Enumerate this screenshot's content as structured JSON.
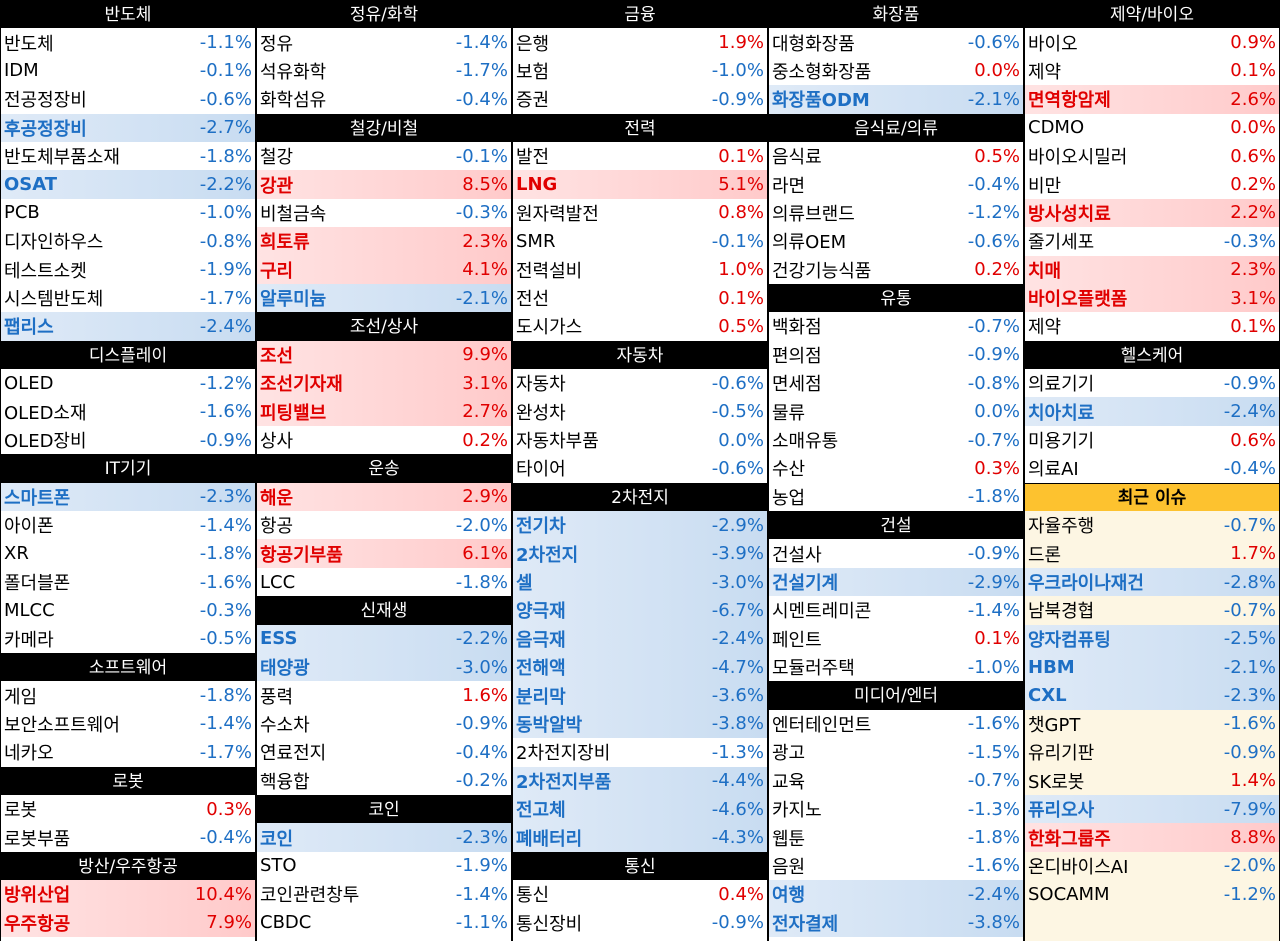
{
  "columns": [
    {
      "sections": [
        {
          "title": "반도체",
          "rows": [
            {
              "name": "반도체",
              "value": "-1.1%",
              "dir": "neg"
            },
            {
              "name": "IDM",
              "value": "-0.1%",
              "dir": "neg"
            },
            {
              "name": "전공정장비",
              "value": "-0.6%",
              "dir": "neg"
            },
            {
              "name": "후공정장비",
              "value": "-2.7%",
              "dir": "neg",
              "hl": "blue"
            },
            {
              "name": "반도체부품소재",
              "value": "-1.8%",
              "dir": "neg"
            },
            {
              "name": "OSAT",
              "value": "-2.2%",
              "dir": "neg",
              "hl": "blue"
            },
            {
              "name": "PCB",
              "value": "-1.0%",
              "dir": "neg"
            },
            {
              "name": "디자인하우스",
              "value": "-0.8%",
              "dir": "neg"
            },
            {
              "name": "테스트소켓",
              "value": "-1.9%",
              "dir": "neg"
            },
            {
              "name": "시스템반도체",
              "value": "-1.7%",
              "dir": "neg"
            },
            {
              "name": "팹리스",
              "value": "-2.4%",
              "dir": "neg",
              "hl": "blue"
            }
          ]
        },
        {
          "title": "디스플레이",
          "rows": [
            {
              "name": "OLED",
              "value": "-1.2%",
              "dir": "neg"
            },
            {
              "name": "OLED소재",
              "value": "-1.6%",
              "dir": "neg"
            },
            {
              "name": "OLED장비",
              "value": "-0.9%",
              "dir": "neg"
            }
          ]
        },
        {
          "title": "IT기기",
          "rows": [
            {
              "name": "스마트폰",
              "value": "-2.3%",
              "dir": "neg",
              "hl": "blue"
            },
            {
              "name": "아이폰",
              "value": "-1.4%",
              "dir": "neg"
            },
            {
              "name": "XR",
              "value": "-1.8%",
              "dir": "neg"
            },
            {
              "name": "폴더블폰",
              "value": "-1.6%",
              "dir": "neg"
            },
            {
              "name": "MLCC",
              "value": "-0.3%",
              "dir": "neg"
            },
            {
              "name": "카메라",
              "value": "-0.5%",
              "dir": "neg"
            }
          ]
        },
        {
          "title": "소프트웨어",
          "rows": [
            {
              "name": "게임",
              "value": "-1.8%",
              "dir": "neg"
            },
            {
              "name": "보안소프트웨어",
              "value": "-1.4%",
              "dir": "neg"
            },
            {
              "name": "네카오",
              "value": "-1.7%",
              "dir": "neg"
            }
          ]
        },
        {
          "title": "로봇",
          "rows": [
            {
              "name": "로봇",
              "value": "0.3%",
              "dir": "pos"
            },
            {
              "name": "로봇부품",
              "value": "-0.4%",
              "dir": "neg"
            }
          ]
        },
        {
          "title": "방산/우주항공",
          "rows": [
            {
              "name": "방위산업",
              "value": "10.4%",
              "dir": "pos",
              "hl": "red"
            },
            {
              "name": "우주항공",
              "value": "7.9%",
              "dir": "pos",
              "hl": "red"
            }
          ]
        }
      ]
    },
    {
      "sections": [
        {
          "title": "정유/화학",
          "rows": [
            {
              "name": "정유",
              "value": "-1.4%",
              "dir": "neg"
            },
            {
              "name": "석유화학",
              "value": "-1.7%",
              "dir": "neg"
            },
            {
              "name": "화학섬유",
              "value": "-0.4%",
              "dir": "neg"
            }
          ]
        },
        {
          "title": "철강/비철",
          "rows": [
            {
              "name": "철강",
              "value": "-0.1%",
              "dir": "neg"
            },
            {
              "name": "강관",
              "value": "8.5%",
              "dir": "pos",
              "hl": "red"
            },
            {
              "name": "비철금속",
              "value": "-0.3%",
              "dir": "neg"
            },
            {
              "name": "희토류",
              "value": "2.3%",
              "dir": "pos",
              "hl": "red"
            },
            {
              "name": "구리",
              "value": "4.1%",
              "dir": "pos",
              "hl": "red"
            },
            {
              "name": "알루미늄",
              "value": "-2.1%",
              "dir": "neg",
              "hl": "blue"
            }
          ]
        },
        {
          "title": "조선/상사",
          "rows": [
            {
              "name": "조선",
              "value": "9.9%",
              "dir": "pos",
              "hl": "red"
            },
            {
              "name": "조선기자재",
              "value": "3.1%",
              "dir": "pos",
              "hl": "red"
            },
            {
              "name": "피팅밸브",
              "value": "2.7%",
              "dir": "pos",
              "hl": "red"
            },
            {
              "name": "상사",
              "value": "0.2%",
              "dir": "pos"
            }
          ]
        },
        {
          "title": "운송",
          "rows": [
            {
              "name": "해운",
              "value": "2.9%",
              "dir": "pos",
              "hl": "red"
            },
            {
              "name": "항공",
              "value": "-2.0%",
              "dir": "neg"
            },
            {
              "name": "항공기부품",
              "value": "6.1%",
              "dir": "pos",
              "hl": "red"
            },
            {
              "name": "LCC",
              "value": "-1.8%",
              "dir": "neg"
            }
          ]
        },
        {
          "title": "신재생",
          "rows": [
            {
              "name": "ESS",
              "value": "-2.2%",
              "dir": "neg",
              "hl": "blue"
            },
            {
              "name": "태양광",
              "value": "-3.0%",
              "dir": "neg",
              "hl": "blue"
            },
            {
              "name": "풍력",
              "value": "1.6%",
              "dir": "pos"
            },
            {
              "name": "수소차",
              "value": "-0.9%",
              "dir": "neg"
            },
            {
              "name": "연료전지",
              "value": "-0.4%",
              "dir": "neg"
            },
            {
              "name": "핵융합",
              "value": "-0.2%",
              "dir": "neg"
            }
          ]
        },
        {
          "title": "코인",
          "rows": [
            {
              "name": "코인",
              "value": "-2.3%",
              "dir": "neg",
              "hl": "blue"
            },
            {
              "name": "STO",
              "value": "-1.9%",
              "dir": "neg"
            },
            {
              "name": "코인관련창투",
              "value": "-1.4%",
              "dir": "neg"
            },
            {
              "name": "CBDC",
              "value": "-1.1%",
              "dir": "neg"
            }
          ]
        }
      ]
    },
    {
      "sections": [
        {
          "title": "금융",
          "rows": [
            {
              "name": "은행",
              "value": "1.9%",
              "dir": "pos"
            },
            {
              "name": "보험",
              "value": "-1.0%",
              "dir": "neg"
            },
            {
              "name": "증권",
              "value": "-0.9%",
              "dir": "neg"
            }
          ]
        },
        {
          "title": "전력",
          "rows": [
            {
              "name": "발전",
              "value": "0.1%",
              "dir": "pos"
            },
            {
              "name": "LNG",
              "value": "5.1%",
              "dir": "pos",
              "hl": "red"
            },
            {
              "name": "원자력발전",
              "value": "0.8%",
              "dir": "pos"
            },
            {
              "name": "SMR",
              "value": "-0.1%",
              "dir": "neg"
            },
            {
              "name": "전력설비",
              "value": "1.0%",
              "dir": "pos"
            },
            {
              "name": "전선",
              "value": "0.1%",
              "dir": "pos"
            },
            {
              "name": "도시가스",
              "value": "0.5%",
              "dir": "pos"
            }
          ]
        },
        {
          "title": "자동차",
          "rows": [
            {
              "name": "자동차",
              "value": "-0.6%",
              "dir": "neg"
            },
            {
              "name": "완성차",
              "value": "-0.5%",
              "dir": "neg"
            },
            {
              "name": "자동차부품",
              "value": "0.0%",
              "dir": "zero"
            },
            {
              "name": "타이어",
              "value": "-0.6%",
              "dir": "neg"
            }
          ]
        },
        {
          "title": "2차전지",
          "rows": [
            {
              "name": "전기차",
              "value": "-2.9%",
              "dir": "neg",
              "hl": "blue"
            },
            {
              "name": "2차전지",
              "value": "-3.9%",
              "dir": "neg",
              "hl": "blue"
            },
            {
              "name": "셀",
              "value": "-3.0%",
              "dir": "neg",
              "hl": "blue"
            },
            {
              "name": "양극재",
              "value": "-6.7%",
              "dir": "neg",
              "hl": "blue"
            },
            {
              "name": "음극재",
              "value": "-2.4%",
              "dir": "neg",
              "hl": "blue"
            },
            {
              "name": "전해액",
              "value": "-4.7%",
              "dir": "neg",
              "hl": "blue"
            },
            {
              "name": "분리막",
              "value": "-3.6%",
              "dir": "neg",
              "hl": "blue"
            },
            {
              "name": "동박알박",
              "value": "-3.8%",
              "dir": "neg",
              "hl": "blue"
            },
            {
              "name": "2차전지장비",
              "value": "-1.3%",
              "dir": "neg"
            },
            {
              "name": "2차전지부품",
              "value": "-4.4%",
              "dir": "neg",
              "hl": "blue"
            },
            {
              "name": "전고체",
              "value": "-4.6%",
              "dir": "neg",
              "hl": "blue"
            },
            {
              "name": "폐배터리",
              "value": "-4.3%",
              "dir": "neg",
              "hl": "blue"
            }
          ]
        },
        {
          "title": "통신",
          "rows": [
            {
              "name": "통신",
              "value": "0.4%",
              "dir": "pos"
            },
            {
              "name": "통신장비",
              "value": "-0.9%",
              "dir": "neg"
            }
          ]
        }
      ]
    },
    {
      "sections": [
        {
          "title": "화장품",
          "rows": [
            {
              "name": "대형화장품",
              "value": "-0.6%",
              "dir": "neg"
            },
            {
              "name": "중소형화장품",
              "value": "0.0%",
              "dir": "pos"
            },
            {
              "name": "화장품ODM",
              "value": "-2.1%",
              "dir": "neg",
              "hl": "blue"
            }
          ]
        },
        {
          "title": "음식료/의류",
          "rows": [
            {
              "name": "음식료",
              "value": "0.5%",
              "dir": "pos"
            },
            {
              "name": "라면",
              "value": "-0.4%",
              "dir": "neg"
            },
            {
              "name": "의류브랜드",
              "value": "-1.2%",
              "dir": "neg"
            },
            {
              "name": "의류OEM",
              "value": "-0.6%",
              "dir": "neg"
            },
            {
              "name": "건강기능식품",
              "value": "0.2%",
              "dir": "pos"
            }
          ]
        },
        {
          "title": "유통",
          "rows": [
            {
              "name": "백화점",
              "value": "-0.7%",
              "dir": "neg"
            },
            {
              "name": "편의점",
              "value": "-0.9%",
              "dir": "neg"
            },
            {
              "name": "면세점",
              "value": "-0.8%",
              "dir": "neg"
            },
            {
              "name": "물류",
              "value": "0.0%",
              "dir": "zero"
            },
            {
              "name": "소매유통",
              "value": "-0.7%",
              "dir": "neg"
            },
            {
              "name": "수산",
              "value": "0.3%",
              "dir": "pos"
            },
            {
              "name": "농업",
              "value": "-1.8%",
              "dir": "neg"
            }
          ]
        },
        {
          "title": "건설",
          "rows": [
            {
              "name": "건설사",
              "value": "-0.9%",
              "dir": "neg"
            },
            {
              "name": "건설기계",
              "value": "-2.9%",
              "dir": "neg",
              "hl": "blue"
            },
            {
              "name": "시멘트레미콘",
              "value": "-1.4%",
              "dir": "neg"
            },
            {
              "name": "페인트",
              "value": "0.1%",
              "dir": "pos"
            },
            {
              "name": "모듈러주택",
              "value": "-1.0%",
              "dir": "neg"
            }
          ]
        },
        {
          "title": "미디어/엔터",
          "rows": [
            {
              "name": "엔터테인먼트",
              "value": "-1.6%",
              "dir": "neg"
            },
            {
              "name": "광고",
              "value": "-1.5%",
              "dir": "neg"
            },
            {
              "name": "교육",
              "value": "-0.7%",
              "dir": "neg"
            },
            {
              "name": "카지노",
              "value": "-1.3%",
              "dir": "neg"
            },
            {
              "name": "웹툰",
              "value": "-1.8%",
              "dir": "neg"
            },
            {
              "name": "음원",
              "value": "-1.6%",
              "dir": "neg"
            },
            {
              "name": "여행",
              "value": "-2.4%",
              "dir": "neg",
              "hl": "blue"
            },
            {
              "name": "전자결제",
              "value": "-3.8%",
              "dir": "neg",
              "hl": "blue"
            }
          ]
        }
      ]
    },
    {
      "sections": [
        {
          "title": "제약/바이오",
          "rows": [
            {
              "name": "바이오",
              "value": "0.9%",
              "dir": "pos"
            },
            {
              "name": "제약",
              "value": "0.1%",
              "dir": "pos"
            },
            {
              "name": "면역항암제",
              "value": "2.6%",
              "dir": "pos",
              "hl": "red"
            },
            {
              "name": "CDMO",
              "value": "0.0%",
              "dir": "pos"
            },
            {
              "name": "바이오시밀러",
              "value": "0.6%",
              "dir": "pos"
            },
            {
              "name": "비만",
              "value": "0.2%",
              "dir": "pos"
            },
            {
              "name": "방사성치료",
              "value": "2.2%",
              "dir": "pos",
              "hl": "red"
            },
            {
              "name": "줄기세포",
              "value": "-0.3%",
              "dir": "neg"
            },
            {
              "name": "치매",
              "value": "2.3%",
              "dir": "pos",
              "hl": "red"
            },
            {
              "name": "바이오플랫폼",
              "value": "3.1%",
              "dir": "pos",
              "hl": "red"
            },
            {
              "name": "제약",
              "value": "0.1%",
              "dir": "pos"
            }
          ]
        },
        {
          "title": "헬스케어",
          "rows": [
            {
              "name": "의료기기",
              "value": "-0.9%",
              "dir": "neg"
            },
            {
              "name": "치아치료",
              "value": "-2.4%",
              "dir": "neg",
              "hl": "blue"
            },
            {
              "name": "미용기기",
              "value": "0.6%",
              "dir": "pos"
            },
            {
              "name": "의료AI",
              "value": "-0.4%",
              "dir": "neg"
            }
          ]
        },
        {
          "title": "최근 이슈",
          "special": "orange",
          "rows": [
            {
              "name": "자율주행",
              "value": "-0.7%",
              "dir": "neg"
            },
            {
              "name": "드론",
              "value": "1.7%",
              "dir": "pos"
            },
            {
              "name": "우크라이나재건",
              "value": "-2.8%",
              "dir": "neg",
              "hl": "blue"
            },
            {
              "name": "남북경협",
              "value": "-0.7%",
              "dir": "neg"
            },
            {
              "name": "양자컴퓨팅",
              "value": "-2.5%",
              "dir": "neg",
              "hl": "blue"
            },
            {
              "name": "HBM",
              "value": "-2.1%",
              "dir": "neg",
              "hl": "blue"
            },
            {
              "name": "CXL",
              "value": "-2.3%",
              "dir": "neg",
              "hl": "blue"
            },
            {
              "name": "챗GPT",
              "value": "-1.6%",
              "dir": "neg"
            },
            {
              "name": "유리기판",
              "value": "-0.9%",
              "dir": "neg"
            },
            {
              "name": "SK로봇",
              "value": "1.4%",
              "dir": "pos"
            },
            {
              "name": "퓨리오사",
              "value": "-7.9%",
              "dir": "neg",
              "hl": "blue"
            },
            {
              "name": "한화그룹주",
              "value": "8.8%",
              "dir": "pos",
              "hl": "red"
            },
            {
              "name": "온디바이스AI",
              "value": "-2.0%",
              "dir": "neg"
            },
            {
              "name": "SOCAMM",
              "value": "-1.2%",
              "dir": "neg"
            }
          ]
        }
      ]
    }
  ],
  "colors": {
    "up": "#e00000",
    "down": "#1e6fc4",
    "header_bg": "#000000",
    "issue_header_bg": "#fdc22f"
  }
}
